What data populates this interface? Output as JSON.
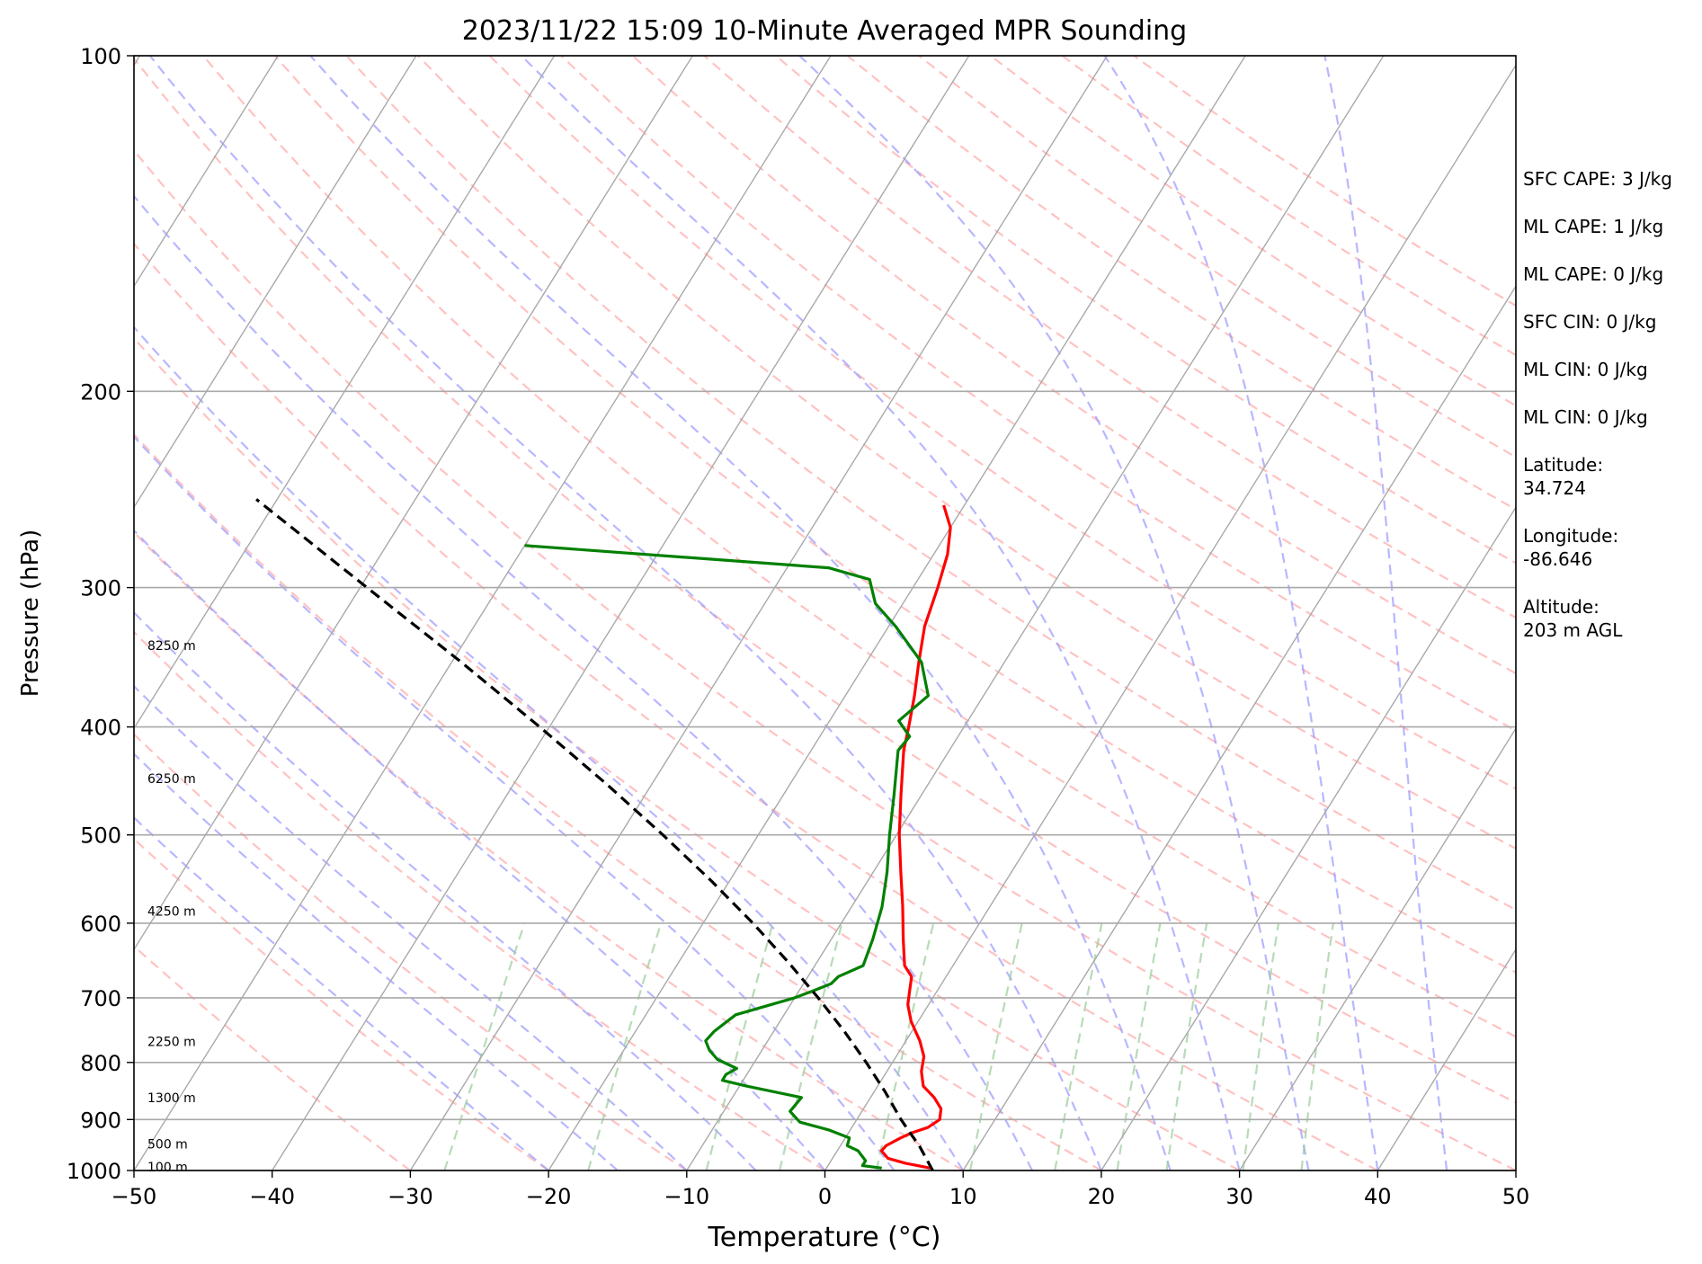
{
  "chart_data": {
    "type": "line",
    "title": "2023/11/22 15:09 10-Minute Averaged MPR Sounding",
    "xlabel": "Temperature (°C)",
    "ylabel": "Pressure (hPa)",
    "xlim": [
      -50,
      50
    ],
    "ylim": [
      1000,
      100
    ],
    "y_scale": "log",
    "skew": "skew-T",
    "x_ticks": [
      -50,
      -40,
      -30,
      -20,
      -10,
      0,
      10,
      20,
      30,
      40,
      50
    ],
    "x_tick_labels": [
      "−50",
      "−40",
      "−30",
      "−20",
      "−10",
      "0",
      "10",
      "20",
      "30",
      "40",
      "50"
    ],
    "y_ticks": [
      100,
      200,
      300,
      400,
      500,
      600,
      700,
      800,
      900,
      1000
    ],
    "y_tick_labels": [
      "100",
      "200",
      "300",
      "400",
      "500",
      "600",
      "700",
      "800",
      "900",
      "1000"
    ],
    "grid": true,
    "height_labels": [
      {
        "pressure": 338,
        "text": "8250 m"
      },
      {
        "pressure": 445,
        "text": "6250 m"
      },
      {
        "pressure": 585,
        "text": "4250 m"
      },
      {
        "pressure": 766,
        "text": "2250 m"
      },
      {
        "pressure": 860,
        "text": "1300 m"
      },
      {
        "pressure": 947,
        "text": "500 m"
      },
      {
        "pressure": 993,
        "text": "100 m"
      }
    ],
    "series": [
      {
        "role": "temperature",
        "color": "#ff0000",
        "pressure": [
          995,
          985,
          975,
          960,
          950,
          935,
          925,
          915,
          900,
          880,
          860,
          840,
          815,
          790,
          765,
          735,
          710,
          690,
          670,
          655,
          620,
          580,
          540,
          500,
          460,
          420,
          400,
          375,
          350,
          325,
          300,
          280,
          265,
          253
        ],
        "temperature": [
          7.5,
          5.5,
          4.0,
          3.2,
          3.3,
          4.0,
          4.6,
          5.5,
          6.0,
          5.6,
          4.6,
          3.3,
          2.5,
          2.0,
          1.0,
          -0.5,
          -1.5,
          -2.0,
          -2.5,
          -3.5,
          -4.8,
          -6.3,
          -8.0,
          -9.8,
          -11.5,
          -13.3,
          -14.0,
          -15.0,
          -16.2,
          -17.4,
          -18.2,
          -19.0,
          -20.0,
          -21.5
        ]
      },
      {
        "role": "dewpoint",
        "color": "#008000",
        "pressure": [
          995,
          990,
          980,
          960,
          950,
          935,
          920,
          905,
          885,
          860,
          840,
          830,
          820,
          810,
          795,
          780,
          765,
          750,
          725,
          700,
          690,
          680,
          670,
          655,
          620,
          580,
          540,
          500,
          460,
          420,
          408,
          395,
          375,
          350,
          325,
          310,
          295,
          288,
          275
        ],
        "temperature": [
          4.0,
          2.5,
          2.5,
          1.5,
          0.5,
          0.3,
          -1.5,
          -4.0,
          -5.2,
          -5.0,
          -9.5,
          -11.5,
          -11.5,
          -11.0,
          -12.8,
          -13.8,
          -14.5,
          -14.3,
          -13.5,
          -10.0,
          -9.0,
          -8.0,
          -7.8,
          -6.5,
          -7.0,
          -7.8,
          -9.0,
          -10.5,
          -12.0,
          -13.7,
          -13.5,
          -15.0,
          -14.0,
          -16.0,
          -19.5,
          -22.0,
          -23.5,
          -27.0,
          -50.0
        ]
      },
      {
        "role": "parcel",
        "color": "#000000",
        "dashed": true,
        "pressure": [
          1000,
          950,
          930,
          900,
          850,
          800,
          750,
          700,
          650,
          600,
          550,
          500,
          450,
          400,
          350,
          300,
          250
        ],
        "temperature": [
          7.8,
          5.7,
          4.7,
          3.2,
          0.8,
          -1.9,
          -4.9,
          -8.3,
          -12.1,
          -16.4,
          -21.3,
          -26.9,
          -33.3,
          -40.7,
          -49.3,
          -59.5,
          -71.5
        ]
      }
    ],
    "annotations": [
      "SFC CAPE: 3 J/kg",
      "ML CAPE: 1 J/kg",
      "ML CAPE: 0 J/kg",
      "SFC CIN: 0 J/kg",
      "ML CIN: 0 J/kg",
      "ML CIN: 0 J/kg",
      "Latitude:\n34.724",
      "Longitude:\n-86.646",
      "Altitude:\n203 m AGL"
    ],
    "background_lines": {
      "isotherms_color": "#a9a9a9",
      "dry_adiabats_color": "#ff9999",
      "moist_adiabats_color": "#9999ff",
      "mixing_ratio_color": "#99cc99"
    }
  }
}
